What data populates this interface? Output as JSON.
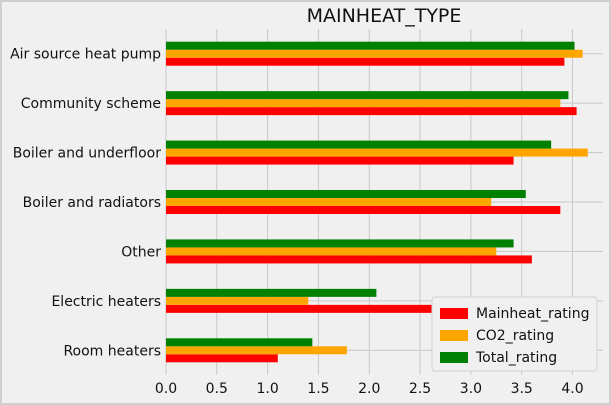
{
  "chart_data": {
    "type": "bar",
    "orientation": "horizontal",
    "title": "MAINHEAT_TYPE",
    "xlabel": "",
    "ylabel": "",
    "xlim": [
      0,
      4.3
    ],
    "xticks": [
      "0.0",
      "0.5",
      "1.0",
      "1.5",
      "2.0",
      "2.5",
      "3.0",
      "3.5",
      "4.0"
    ],
    "categories": [
      "Room heaters",
      "Electric heaters",
      "Other",
      "Boiler and radiators",
      "Boiler and underfloor",
      "Community scheme",
      "Air source heat pump"
    ],
    "series": [
      {
        "name": "Mainheat_rating",
        "color": "#ff0000",
        "values": [
          1.1,
          2.7,
          3.6,
          3.88,
          3.42,
          4.04,
          3.92
        ]
      },
      {
        "name": "CO2_rating",
        "color": "#ffa500",
        "values": [
          1.78,
          1.4,
          3.25,
          3.2,
          4.15,
          3.88,
          4.1
        ]
      },
      {
        "name": "Total_rating",
        "color": "#008000",
        "values": [
          1.44,
          2.07,
          3.42,
          3.54,
          3.79,
          3.96,
          4.02
        ]
      }
    ],
    "grid": true,
    "legend_position": "lower-right"
  }
}
